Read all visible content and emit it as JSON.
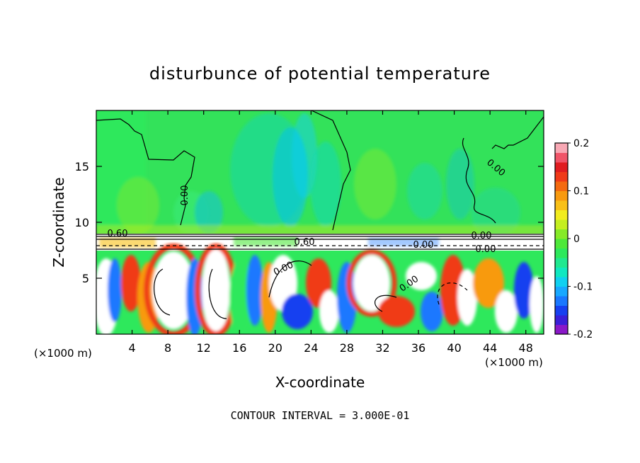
{
  "chart_data": {
    "type": "heatmap",
    "title": "disturbunce of potential temperature",
    "xlabel": "X-coordinate",
    "ylabel": "Z-coordinate",
    "x_unit_label": "(×1000 m)",
    "z_unit_label": "(×1000 m)",
    "xlim": [
      0,
      50
    ],
    "ylim": [
      0,
      20
    ],
    "x_ticks": [
      4,
      8,
      12,
      16,
      20,
      24,
      28,
      32,
      36,
      40,
      44,
      48
    ],
    "y_ticks": [
      5,
      10,
      15
    ],
    "colorbar": {
      "range": [
        -0.2,
        0.2
      ],
      "tick_labels": [
        "0.2",
        "0.1",
        "0",
        "-0.1",
        "-0.2"
      ],
      "tick_values": [
        0.2,
        0.1,
        0,
        -0.1,
        -0.2
      ],
      "colors": [
        "#8a18c8",
        "#3a1fd8",
        "#1740f0",
        "#1a78ff",
        "#18a8ff",
        "#10d0f0",
        "#10e8c0",
        "#20e890",
        "#2ee85c",
        "#4ee83a",
        "#86ea28",
        "#c4ee20",
        "#f2ec1e",
        "#f8c018",
        "#f89a10",
        "#f46a10",
        "#f03a18",
        "#e01c20",
        "#f05468",
        "#f8a8b4"
      ]
    },
    "contour_labels": [
      "0.00",
      "0.60",
      "0.60",
      "0.00",
      "0.00",
      "0.00",
      "0.00",
      "0.00",
      "0.00"
    ],
    "footer": "CONTOUR INTERVAL = 3.000E-01",
    "grid": false
  }
}
